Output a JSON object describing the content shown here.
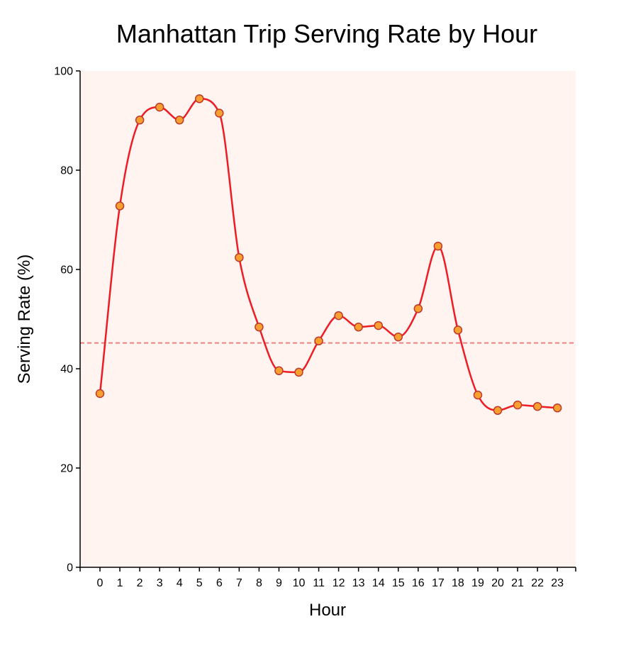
{
  "chart_data": {
    "type": "line",
    "title": "Manhattan Trip Serving Rate by Hour",
    "xlabel": "Hour",
    "ylabel": "Serving Rate (%)",
    "x": [
      0,
      1,
      2,
      3,
      4,
      5,
      6,
      7,
      8,
      9,
      10,
      11,
      12,
      13,
      14,
      15,
      16,
      17,
      18,
      19,
      20,
      21,
      22,
      23
    ],
    "x_tick_labels": [
      "0",
      "1",
      "2",
      "3",
      "4",
      "5",
      "6",
      "7",
      "8",
      "9",
      "10",
      "11",
      "12",
      "13",
      "14",
      "15",
      "16",
      "17",
      "18",
      "19",
      "20",
      "21",
      "22",
      "23"
    ],
    "series": [
      {
        "values": [
          35.0,
          72.8,
          90.1,
          92.7,
          90.1,
          94.4,
          91.5,
          62.4,
          48.4,
          39.6,
          39.3,
          45.6,
          50.7,
          48.4,
          48.7,
          46.4,
          52.1,
          64.7,
          47.8,
          34.7,
          31.6,
          32.7,
          32.4,
          32.1
        ]
      }
    ],
    "reference_line": {
      "value": 45.2,
      "style": "dashed"
    },
    "ylim": [
      0,
      100
    ],
    "y_ticks": [
      "0",
      "20",
      "40",
      "60",
      "80",
      "100"
    ],
    "grid": false,
    "legend": "none",
    "colors": {
      "line": "#ee1c25",
      "marker_fill": "#f7a030",
      "marker_stroke": "#c0392b",
      "reference_line": "#f08080",
      "plot_background": "#fff4ef"
    }
  }
}
